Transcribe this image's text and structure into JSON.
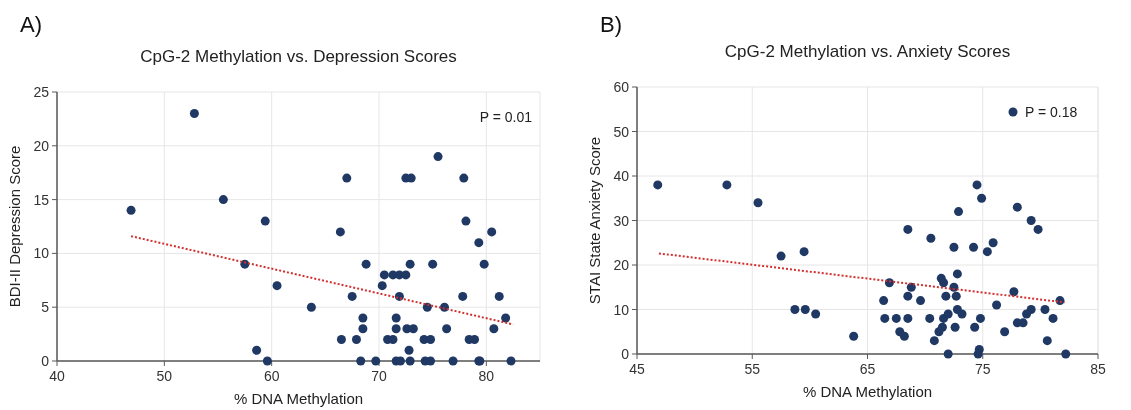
{
  "chart_data": [
    {
      "type": "scatter",
      "title": "CpG-2 Methylation vs. Depression Scores",
      "xlabel": "% DNA Methylation",
      "ylabel": "BDI-II Depression Score",
      "annotations": [
        "A)",
        "P = 0.01"
      ],
      "xlim": [
        40,
        85
      ],
      "xticks": [
        40,
        50,
        60,
        70,
        80
      ],
      "ylim": [
        0,
        25
      ],
      "yticks": [
        0,
        5,
        10,
        15,
        20,
        25
      ],
      "grid": true,
      "legend": false,
      "marker": "circle",
      "series": [
        {
          "color": "#1f3864",
          "x": [
            46.9,
            52.8,
            55.5,
            59.4,
            57.5,
            60.5,
            63.7,
            58.6,
            59.6,
            75.5,
            67,
            72.5,
            73,
            77.9,
            78.1,
            66.4,
            80.5,
            79.3,
            68.8,
            72.9,
            75,
            79.8,
            70.5,
            71.3,
            71.9,
            72.5,
            70.3,
            67.5,
            71.9,
            77.8,
            81.2,
            74.5,
            76.1,
            68.5,
            71.6,
            81.8,
            68.5,
            71.6,
            72.6,
            73.2,
            76.3,
            80.7,
            66.5,
            67.9,
            70.8,
            71.3,
            74.2,
            74.8,
            78.4,
            78.9,
            72.8,
            68.3,
            69.7,
            71.6,
            72,
            72.9,
            74.3,
            74.8,
            76.9,
            79.3,
            79.4,
            82.3
          ],
          "values": [
            14,
            23,
            15,
            13,
            9,
            7,
            5,
            1,
            0,
            19,
            17,
            17,
            17,
            17,
            13,
            12,
            12,
            11,
            9,
            9,
            9,
            9,
            8,
            8,
            8,
            8,
            7,
            6,
            6,
            6,
            6,
            5,
            5,
            4,
            4,
            4,
            3,
            3,
            3,
            3,
            3,
            3,
            2,
            2,
            2,
            2,
            2,
            2,
            2,
            2,
            1,
            0,
            0,
            0,
            0,
            0,
            0,
            0,
            0,
            0,
            0,
            0
          ]
        },
        {
          "type": "line",
          "color": "#d32f2f",
          "line_style": "dotted",
          "marker": "none",
          "x": [
            46.9,
            82.5
          ],
          "values": [
            11.6,
            3.4
          ]
        }
      ]
    },
    {
      "type": "scatter",
      "title": "CpG-2 Methylation vs. Anxiety Scores",
      "xlabel": "% DNA Methylation",
      "ylabel": "STAI State Anxiety Score",
      "annotations": [
        "B)"
      ],
      "xlim": [
        45,
        85
      ],
      "xticks": [
        45,
        55,
        65,
        75,
        85
      ],
      "ylim": [
        0,
        60
      ],
      "yticks": [
        0,
        10,
        20,
        30,
        40,
        50,
        60
      ],
      "grid": true,
      "legend": "top right",
      "marker": "circle",
      "series": [
        {
          "name": "P = 0.18",
          "color": "#1f3864",
          "x": [
            46.8,
            52.8,
            55.5,
            57.5,
            59.5,
            58.7,
            59.6,
            60.5,
            63.8,
            74.5,
            74.9,
            78,
            72.9,
            79.2,
            79.8,
            68.5,
            70.5,
            75.9,
            72.5,
            74.2,
            75.4,
            72.8,
            71.4,
            71.6,
            66.9,
            68.8,
            72.5,
            77.7,
            81.7,
            66.4,
            68.5,
            69.6,
            71.8,
            72.7,
            76.2,
            72.8,
            73.2,
            79.2,
            80.4,
            78.8,
            66.5,
            67.5,
            68.5,
            70.4,
            71.6,
            72,
            74.8,
            81.1,
            78,
            78.5,
            67.8,
            68.2,
            71.5,
            71.2,
            70.8,
            72.6,
            74.3,
            76.9,
            80.6,
            74.7,
            74.6,
            72,
            82.2
          ],
          "values": [
            38,
            38,
            34,
            22,
            23,
            10,
            10,
            9,
            4,
            38,
            35,
            33,
            32,
            30,
            28,
            28,
            26,
            25,
            24,
            24,
            23,
            18,
            17,
            16,
            16,
            15,
            15,
            14,
            12,
            12,
            13,
            12,
            13,
            13,
            11,
            10,
            9,
            10,
            10,
            9,
            8,
            8,
            8,
            8,
            8,
            9,
            8,
            8,
            7,
            7,
            5,
            4,
            6,
            5,
            3,
            6,
            6,
            5,
            3,
            1,
            0,
            0,
            0
          ]
        },
        {
          "type": "line",
          "color": "#d32f2f",
          "line_style": "dotted",
          "marker": "none",
          "x": [
            46.9,
            82.1
          ],
          "values": [
            22.6,
            11.6
          ]
        }
      ]
    }
  ]
}
